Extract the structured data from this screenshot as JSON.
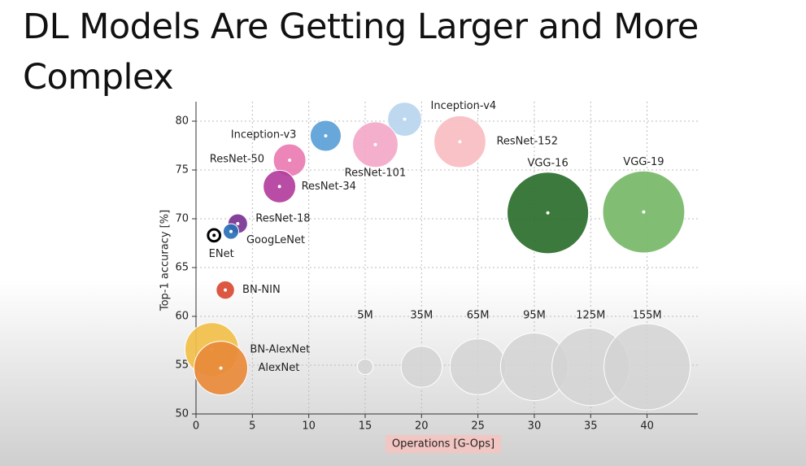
{
  "title": "DL Models Are Getting Larger and More Complex",
  "chart_data": {
    "type": "bubble",
    "xlabel": "Operations [G-Ops]",
    "ylabel": "Top-1 accuracy [%]",
    "xlim": [
      0,
      44.5
    ],
    "ylim": [
      50,
      82
    ],
    "xticks": [
      0,
      5,
      10,
      15,
      20,
      25,
      30,
      35,
      40
    ],
    "yticks": [
      50,
      55,
      60,
      65,
      70,
      75,
      80
    ],
    "grid": true,
    "series": [
      {
        "name": "Inception-v4",
        "color": "#b9d5ee",
        "x": [
          18.5
        ],
        "values": [
          80.2
        ],
        "sizes": [
          24
        ]
      },
      {
        "name": "Inception-v3",
        "color": "#5b9fd6",
        "x": [
          11.5
        ],
        "values": [
          78.5
        ],
        "sizes": [
          20
        ]
      },
      {
        "name": "ResNet-50",
        "color": "#ea7bb2",
        "x": [
          8.3
        ],
        "values": [
          76.0
        ],
        "sizes": [
          22
        ]
      },
      {
        "name": "ResNet-101",
        "color": "#f3a8c9",
        "x": [
          15.9
        ],
        "values": [
          77.6
        ],
        "sizes": [
          43
        ]
      },
      {
        "name": "ResNet-152",
        "color": "#f8bdc1",
        "x": [
          23.4
        ],
        "values": [
          77.9
        ],
        "sizes": [
          56
        ]
      },
      {
        "name": "ResNet-34",
        "color": "#b33d9c",
        "x": [
          7.4
        ],
        "values": [
          73.3
        ],
        "sizes": [
          22
        ]
      },
      {
        "name": "ResNet-18",
        "color": "#7a3393",
        "x": [
          3.7
        ],
        "values": [
          69.5
        ],
        "sizes": [
          8
        ]
      },
      {
        "name": "GoogLeNet",
        "color": "#2a6fb5",
        "x": [
          3.1
        ],
        "values": [
          68.7
        ],
        "sizes": [
          5
        ]
      },
      {
        "name": "ENet",
        "color": "#000000",
        "x": [
          1.6
        ],
        "values": [
          68.3
        ],
        "sizes": [
          3
        ]
      },
      {
        "name": "BN-NIN",
        "color": "#d94a33",
        "x": [
          2.6
        ],
        "values": [
          62.7
        ],
        "sizes": [
          7
        ]
      },
      {
        "name": "VGG-16",
        "color": "#2b6e2b",
        "x": [
          31.2
        ],
        "values": [
          70.6
        ],
        "sizes": [
          138
        ]
      },
      {
        "name": "VGG-19",
        "color": "#76b968",
        "x": [
          39.7
        ],
        "values": [
          70.7
        ],
        "sizes": [
          140
        ]
      },
      {
        "name": "BN-AlexNet",
        "color": "#f2c04b",
        "x": [
          1.4
        ],
        "values": [
          56.6
        ],
        "sizes": [
          60
        ]
      },
      {
        "name": "AlexNet",
        "color": "#e88a3a",
        "x": [
          2.2
        ],
        "values": [
          54.7
        ],
        "sizes": [
          60
        ]
      }
    ],
    "size_legend": [
      {
        "value": 5,
        "label": "5M"
      },
      {
        "value": 35,
        "label": "35M"
      },
      {
        "value": 65,
        "label": "65M"
      },
      {
        "value": 95,
        "label": "95M"
      },
      {
        "value": 125,
        "label": "125M"
      },
      {
        "value": 155,
        "label": "155M"
      }
    ]
  }
}
